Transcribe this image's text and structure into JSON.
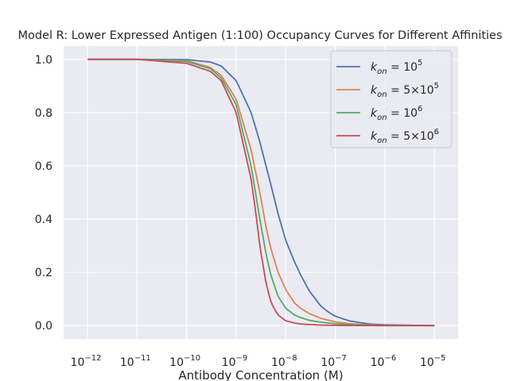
{
  "chart_data": {
    "type": "line",
    "title": "Model R: Lower Expressed Antigen (1:100) Occupancy Curves for Different Affinities",
    "xlabel": "Antibody Concentration (M)",
    "ylabel": "",
    "xscale": "log",
    "xlim": [
      3.3e-13,
      3e-05
    ],
    "ylim": [
      -0.05,
      1.05
    ],
    "x_ticks": [
      {
        "base": "10",
        "exp": "−12",
        "value": 1e-12
      },
      {
        "base": "10",
        "exp": "−11",
        "value": 1e-11
      },
      {
        "base": "10",
        "exp": "−10",
        "value": 1e-10
      },
      {
        "base": "10",
        "exp": "−9",
        "value": 1e-09
      },
      {
        "base": "10",
        "exp": "−8",
        "value": 1e-08
      },
      {
        "base": "10",
        "exp": "−7",
        "value": 1e-07
      },
      {
        "base": "10",
        "exp": "−6",
        "value": 1e-06
      },
      {
        "base": "10",
        "exp": "−5",
        "value": 1e-05
      }
    ],
    "y_ticks": [
      "0.0",
      "0.2",
      "0.4",
      "0.6",
      "0.8",
      "1.0"
    ],
    "y_tick_values": [
      0.0,
      0.2,
      0.4,
      0.6,
      0.8,
      1.0
    ],
    "grid": true,
    "background": "#EAEAF2",
    "legend_position": "top-right",
    "series": [
      {
        "name": "k_on = 10^5",
        "legend": {
          "coef": "",
          "exp": "5"
        },
        "color": "#4C72B0",
        "x": [
          1e-12,
          1e-11,
          1e-10,
          3e-10,
          5e-10,
          1e-09,
          2e-09,
          3e-09,
          5e-09,
          7e-09,
          1e-08,
          1.5e-08,
          2e-08,
          3e-08,
          5e-08,
          7e-08,
          1e-07,
          2e-07,
          5e-07,
          1e-06,
          1e-05
        ],
        "y": [
          1.0,
          1.0,
          0.999,
          0.99,
          0.975,
          0.92,
          0.8,
          0.69,
          0.53,
          0.42,
          0.32,
          0.24,
          0.19,
          0.13,
          0.075,
          0.053,
          0.035,
          0.017,
          0.006,
          0.003,
          0.0
        ]
      },
      {
        "name": "k_on = 5×10^5",
        "legend": {
          "coef": "5×",
          "exp": "5"
        },
        "color": "#DD8452",
        "x": [
          1e-12,
          1e-11,
          1e-10,
          3e-10,
          5e-10,
          1e-09,
          2e-09,
          3e-09,
          4e-09,
          5e-09,
          7e-09,
          1e-08,
          1.5e-08,
          2e-08,
          3e-08,
          5e-08,
          1e-07,
          2e-07,
          5e-07,
          1e-06,
          1e-05
        ],
        "y": [
          1.0,
          1.0,
          0.995,
          0.97,
          0.94,
          0.85,
          0.66,
          0.5,
          0.37,
          0.29,
          0.2,
          0.135,
          0.085,
          0.065,
          0.045,
          0.028,
          0.014,
          0.007,
          0.003,
          0.001,
          0.0
        ]
      },
      {
        "name": "k_on = 10^6",
        "legend": {
          "coef": "",
          "exp": "6"
        },
        "color": "#55A868",
        "x": [
          1e-12,
          1e-11,
          1e-10,
          3e-10,
          5e-10,
          1e-09,
          2e-09,
          3e-09,
          4e-09,
          5e-09,
          7e-09,
          1e-08,
          1.5e-08,
          2e-08,
          3e-08,
          5e-08,
          1e-07,
          2e-07,
          5e-07,
          1e-06,
          1e-05
        ],
        "y": [
          1.0,
          1.0,
          0.992,
          0.965,
          0.93,
          0.83,
          0.6,
          0.4,
          0.27,
          0.19,
          0.11,
          0.065,
          0.04,
          0.03,
          0.02,
          0.013,
          0.007,
          0.004,
          0.002,
          0.001,
          0.0
        ]
      },
      {
        "name": "k_on = 5×10^6",
        "legend": {
          "coef": "5×",
          "exp": "6"
        },
        "color": "#C44E52",
        "x": [
          1e-12,
          1e-11,
          1e-10,
          3e-10,
          5e-10,
          1e-09,
          2e-09,
          2.5e-09,
          3e-09,
          4e-09,
          5e-09,
          6e-09,
          7e-09,
          1e-08,
          1.5e-08,
          2e-08,
          3e-08,
          5e-08,
          1e-07,
          1e-06,
          1e-05
        ],
        "y": [
          1.0,
          1.0,
          0.985,
          0.955,
          0.92,
          0.8,
          0.55,
          0.42,
          0.3,
          0.16,
          0.09,
          0.06,
          0.04,
          0.018,
          0.01,
          0.006,
          0.004,
          0.002,
          0.001,
          0.0,
          0.0
        ]
      }
    ]
  }
}
